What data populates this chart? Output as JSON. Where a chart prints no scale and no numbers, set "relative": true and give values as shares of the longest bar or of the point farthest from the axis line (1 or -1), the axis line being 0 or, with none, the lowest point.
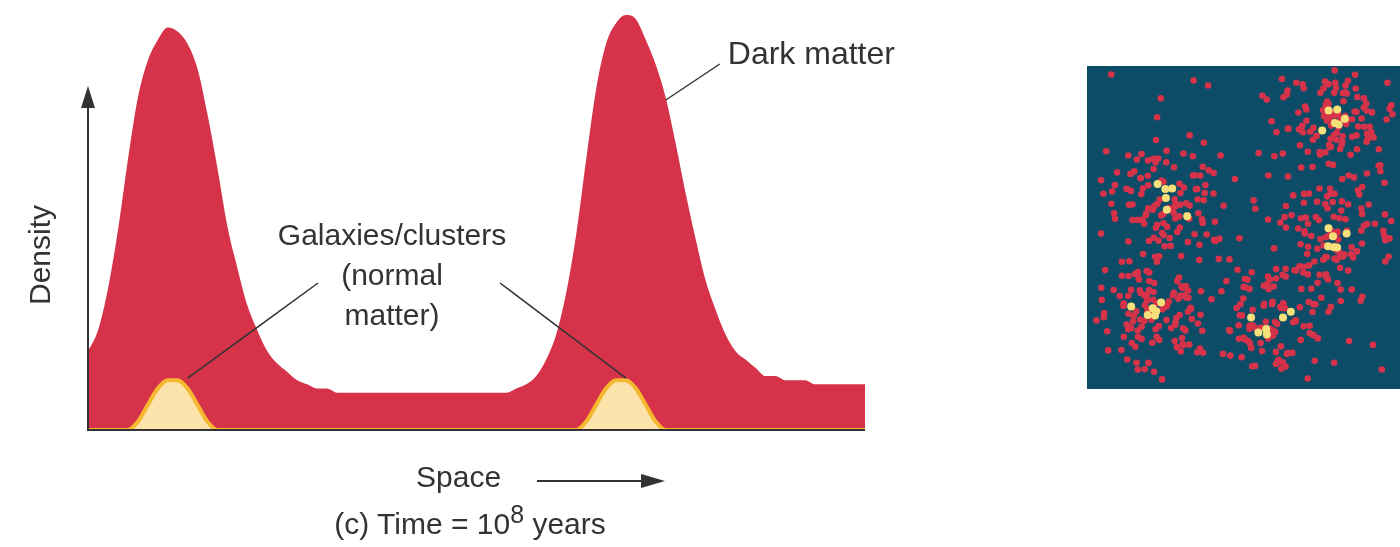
{
  "chart_data": {
    "type": "area",
    "relative": true,
    "title": "(c) Time = 10$^{8}$ years",
    "xlabel": "Space",
    "ylabel": "Density",
    "categories": [
      null,
      null,
      null,
      null,
      null,
      null,
      null,
      null,
      null,
      null,
      null,
      null,
      null,
      null,
      null,
      null,
      null,
      null,
      null,
      null,
      null,
      null,
      null,
      null,
      null,
      null,
      null,
      null,
      null,
      null,
      null,
      null,
      null,
      null,
      null,
      null,
      null,
      null,
      null,
      null,
      null,
      null,
      null,
      null,
      null,
      null,
      null,
      null,
      null,
      null,
      null,
      null,
      null,
      null,
      null,
      null,
      null,
      null,
      null,
      null,
      null,
      null,
      null,
      null,
      null,
      null,
      null,
      null,
      null,
      null,
      null,
      null,
      null,
      null,
      null,
      null,
      null,
      null,
      null
    ],
    "series": [
      {
        "name": "Dark matter",
        "color": "#d6334a",
        "values": [
          0.19,
          0.24,
          0.34,
          0.48,
          0.65,
          0.8,
          0.89,
          0.94,
          0.97,
          0.96,
          0.93,
          0.87,
          0.76,
          0.63,
          0.49,
          0.39,
          0.3,
          0.24,
          0.19,
          0.16,
          0.14,
          0.12,
          0.11,
          0.1,
          0.1,
          0.09,
          0.09,
          0.09,
          0.09,
          0.09,
          0.09,
          0.09,
          0.09,
          0.09,
          0.09,
          0.09,
          0.09,
          0.09,
          0.09,
          0.09,
          0.09,
          0.09,
          0.09,
          0.1,
          0.11,
          0.13,
          0.17,
          0.23,
          0.33,
          0.47,
          0.65,
          0.82,
          0.93,
          0.98,
          1,
          0.99,
          0.94,
          0.88,
          0.8,
          0.69,
          0.57,
          0.46,
          0.36,
          0.29,
          0.23,
          0.19,
          0.17,
          0.15,
          0.13,
          0.13,
          0.12,
          0.12,
          0.12,
          0.11,
          0.11,
          0.11,
          0.11,
          0.11,
          0.11
        ]
      },
      {
        "name": "Galaxies/clusters\n(normal\nmatter)",
        "color": "#f5b82e",
        "values": [
          0,
          0,
          0,
          0,
          0,
          0.02,
          0.06,
          0.1,
          0.12,
          0.12,
          0.1,
          0.06,
          0.02,
          0,
          0,
          0,
          0,
          0,
          0,
          0,
          0,
          0,
          0,
          0,
          0,
          0,
          0,
          0,
          0,
          0,
          0,
          0,
          0,
          0,
          0,
          0,
          0,
          0,
          0,
          0,
          0,
          0,
          0,
          0,
          0,
          0,
          0,
          0,
          0,
          0,
          0.02,
          0.06,
          0.1,
          0.12,
          0.12,
          0.1,
          0.06,
          0.02,
          0,
          0,
          0,
          0,
          0,
          0,
          0,
          0,
          0,
          0,
          0,
          0,
          0,
          0,
          0,
          0,
          0,
          0,
          0,
          0,
          0
        ]
      }
    ]
  }
}
